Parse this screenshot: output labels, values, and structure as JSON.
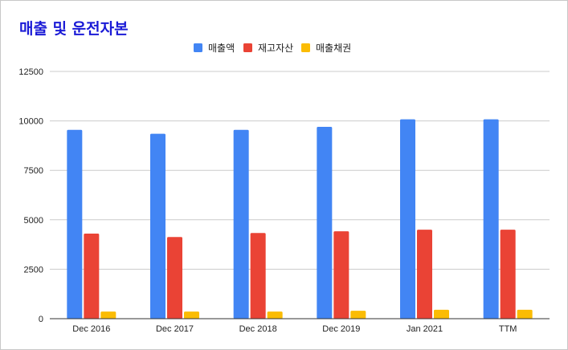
{
  "chart_data": {
    "type": "bar",
    "title": "매출 및 운전자본",
    "categories": [
      "Dec 2016",
      "Dec 2017",
      "Dec 2018",
      "Dec 2019",
      "Jan 2021",
      "TTM"
    ],
    "series": [
      {
        "name": "매출액",
        "color": "#4285f4",
        "values": [
          9550,
          9350,
          9550,
          9700,
          10080,
          10080
        ]
      },
      {
        "name": "재고자산",
        "color": "#ea4335",
        "values": [
          4300,
          4130,
          4330,
          4420,
          4500,
          4500
        ]
      },
      {
        "name": "매출채권",
        "color": "#fbbc04",
        "values": [
          360,
          360,
          360,
          400,
          450,
          450
        ]
      }
    ],
    "y_ticks": [
      "0",
      "2500",
      "5000",
      "7500",
      "10000",
      "12500"
    ],
    "ylim": [
      0,
      12500
    ],
    "grid": true,
    "legend": "top-center"
  }
}
